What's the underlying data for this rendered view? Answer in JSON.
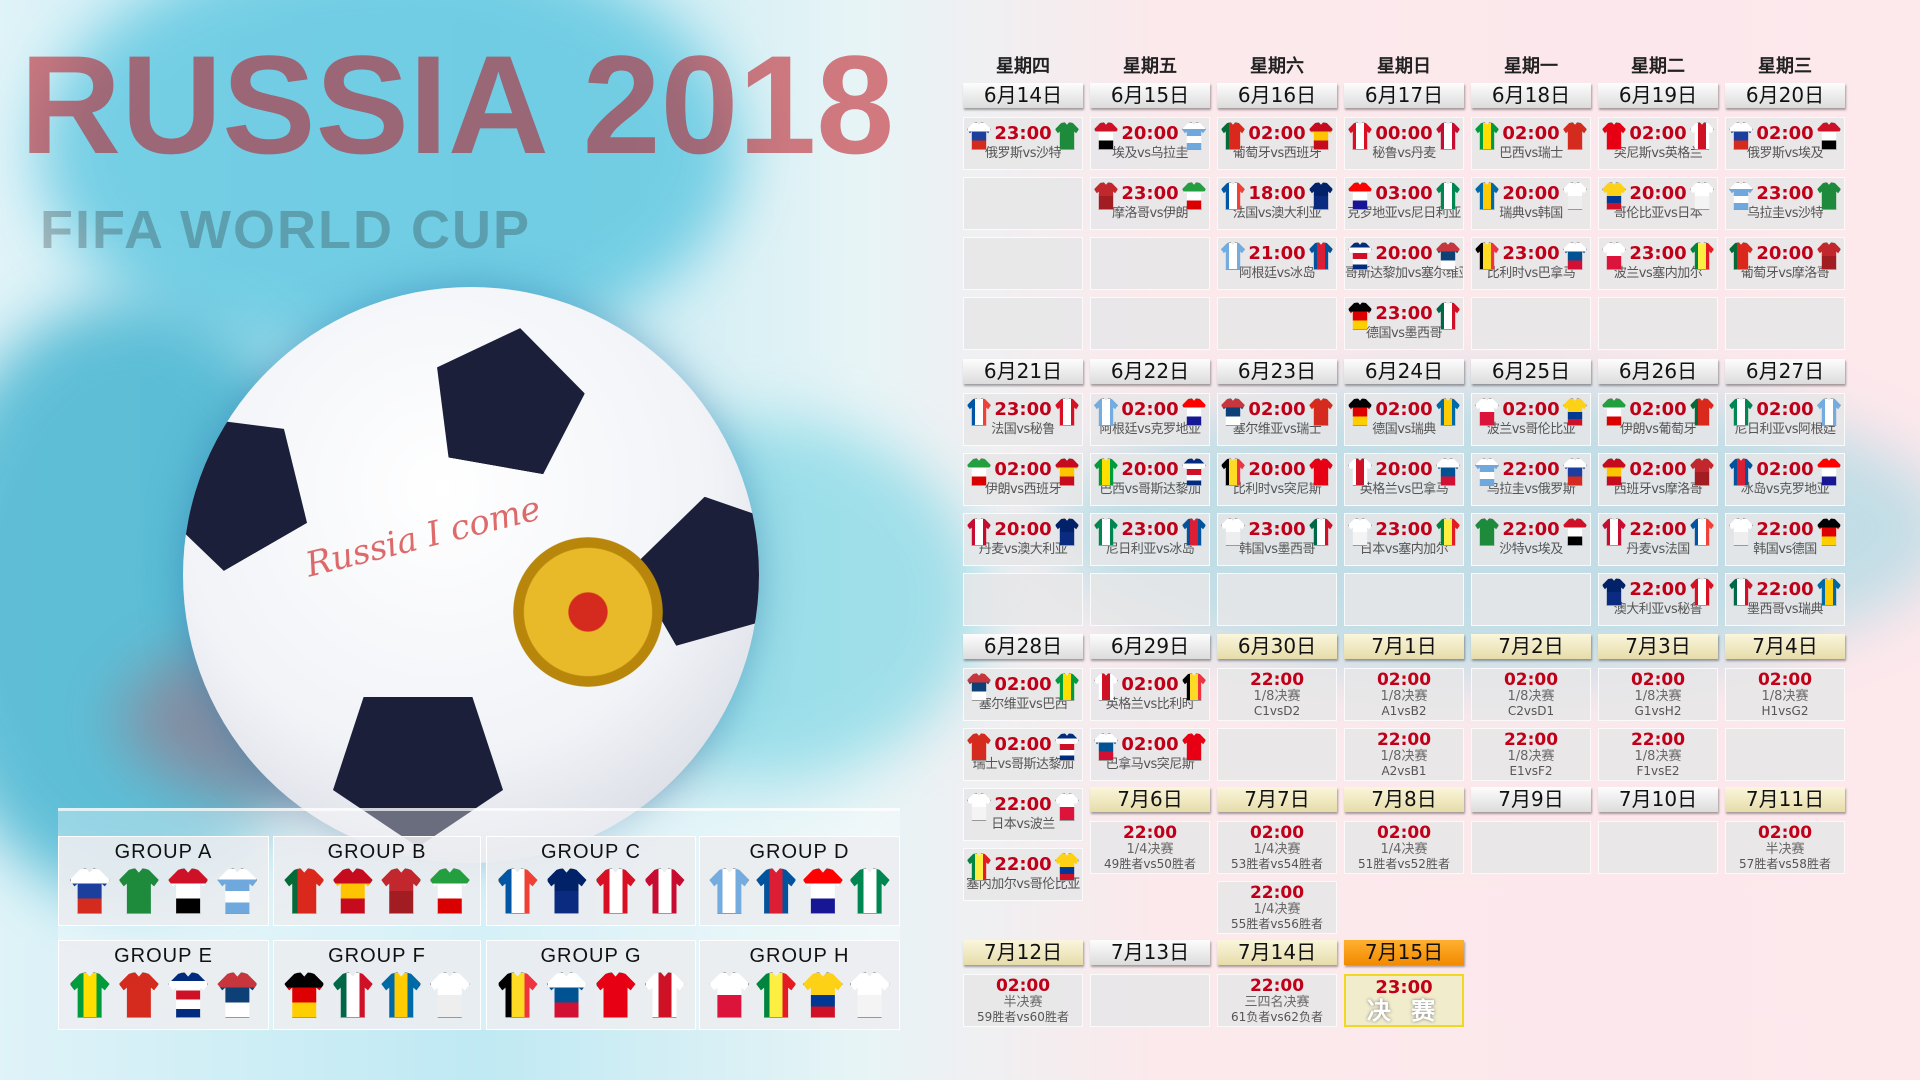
{
  "watermark": {
    "line1": "FIFA WORLD CUP",
    "line2": "RUSSIA 2018",
    "ball_script": "Russia I come"
  },
  "colors": {
    "time": "#c00018",
    "knockout_header": "#e6dcaa",
    "final_header": "#f28a00",
    "final_border": "#f0d820"
  },
  "teams": {
    "俄罗斯": {
      "dir": "h",
      "c": [
        "#ffffff",
        "#1c3f9e",
        "#d52b1e"
      ]
    },
    "沙特": {
      "dir": "h",
      "c": [
        "#1e8a3c",
        "#1e8a3c"
      ]
    },
    "埃及": {
      "dir": "h",
      "c": [
        "#ce1126",
        "#ffffff",
        "#000000"
      ]
    },
    "乌拉圭": {
      "dir": "h",
      "c": [
        "#ffffff",
        "#6fa8dc",
        "#ffffff",
        "#6fa8dc"
      ]
    },
    "葡萄牙": {
      "dir": "v",
      "c": [
        "#046a38",
        "#da291c",
        "#da291c"
      ]
    },
    "西班牙": {
      "dir": "h",
      "c": [
        "#c60b1e",
        "#ffc400",
        "#c60b1e"
      ]
    },
    "摩洛哥": {
      "dir": "h",
      "c": [
        "#c1272d",
        "#a11d22"
      ]
    },
    "伊朗": {
      "dir": "h",
      "c": [
        "#239f40",
        "#ffffff",
        "#da0000"
      ]
    },
    "法国": {
      "dir": "v",
      "c": [
        "#0055a4",
        "#ffffff",
        "#ef4135"
      ]
    },
    "澳大利亚": {
      "dir": "h",
      "c": [
        "#012169",
        "#0a2b80"
      ]
    },
    "秘鲁": {
      "dir": "v",
      "c": [
        "#d91023",
        "#ffffff",
        "#d91023"
      ]
    },
    "丹麦": {
      "dir": "v",
      "c": [
        "#c60c30",
        "#ffffff",
        "#c60c30"
      ]
    },
    "阿根廷": {
      "dir": "v",
      "c": [
        "#74acdf",
        "#ffffff",
        "#74acdf"
      ]
    },
    "冰岛": {
      "dir": "v",
      "c": [
        "#02529c",
        "#dc1e35",
        "#02529c"
      ]
    },
    "克罗地亚": {
      "dir": "h",
      "c": [
        "#ff0000",
        "#ffffff",
        "#171796"
      ]
    },
    "尼日利亚": {
      "dir": "v",
      "c": [
        "#008751",
        "#ffffff",
        "#008751"
      ]
    },
    "巴西": {
      "dir": "v",
      "c": [
        "#009c3b",
        "#ffdf00",
        "#009c3b"
      ]
    },
    "瑞士": {
      "dir": "h",
      "c": [
        "#d52b1e",
        "#d52b1e"
      ]
    },
    "哥斯达黎加": {
      "dir": "h",
      "c": [
        "#002b7f",
        "#ffffff",
        "#ce1126",
        "#ffffff",
        "#002b7f"
      ]
    },
    "塞尔维亚": {
      "dir": "h",
      "c": [
        "#c6363c",
        "#0c4076",
        "#ffffff"
      ]
    },
    "德国": {
      "dir": "h",
      "c": [
        "#000000",
        "#dd0000",
        "#ffce00"
      ]
    },
    "墨西哥": {
      "dir": "v",
      "c": [
        "#006847",
        "#ffffff",
        "#ce1126"
      ]
    },
    "瑞典": {
      "dir": "v",
      "c": [
        "#006aa7",
        "#fecc00",
        "#006aa7"
      ]
    },
    "韩国": {
      "dir": "h",
      "c": [
        "#ffffff",
        "#eeeeee"
      ]
    },
    "比利时": {
      "dir": "v",
      "c": [
        "#000000",
        "#fdda24",
        "#ef3340"
      ]
    },
    "巴拿马": {
      "dir": "h",
      "c": [
        "#ffffff",
        "#005293",
        "#d21034"
      ]
    },
    "突尼斯": {
      "dir": "h",
      "c": [
        "#e70013",
        "#e70013"
      ]
    },
    "英格兰": {
      "dir": "v",
      "c": [
        "#ffffff",
        "#ce1124",
        "#ffffff"
      ]
    },
    "哥伦比亚": {
      "dir": "h",
      "c": [
        "#fcd116",
        "#fcd116",
        "#003893",
        "#ce1126"
      ]
    },
    "日本": {
      "dir": "h",
      "c": [
        "#ffffff",
        "#f4f4f4"
      ]
    },
    "波兰": {
      "dir": "h",
      "c": [
        "#ffffff",
        "#dc143c"
      ]
    },
    "塞内加尔": {
      "dir": "v",
      "c": [
        "#00853f",
        "#fdef42",
        "#e31b23"
      ]
    }
  },
  "schedule": {
    "weekdays": [
      "星期四",
      "星期五",
      "星期六",
      "星期日",
      "星期一",
      "星期二",
      "星期三"
    ],
    "days": [
      {
        "date": "6月14日",
        "style": "group",
        "cells": [
          {
            "time": "23:00",
            "label": "俄罗斯vs沙特",
            "home": "俄罗斯",
            "away": "沙特"
          },
          {},
          {},
          {}
        ]
      },
      {
        "date": "6月15日",
        "style": "group",
        "cells": [
          {
            "time": "20:00",
            "label": "埃及vs乌拉圭",
            "home": "埃及",
            "away": "乌拉圭"
          },
          {
            "time": "23:00",
            "label": "摩洛哥vs伊朗",
            "home": "摩洛哥",
            "away": "伊朗"
          },
          {},
          {}
        ]
      },
      {
        "date": "6月16日",
        "style": "group",
        "cells": [
          {
            "time": "02:00",
            "label": "葡萄牙vs西班牙",
            "home": "葡萄牙",
            "away": "西班牙"
          },
          {
            "time": "18:00",
            "label": "法国vs澳大利亚",
            "home": "法国",
            "away": "澳大利亚"
          },
          {
            "time": "21:00",
            "label": "阿根廷vs冰岛",
            "home": "阿根廷",
            "away": "冰岛"
          },
          {}
        ]
      },
      {
        "date": "6月17日",
        "style": "group",
        "cells": [
          {
            "time": "00:00",
            "label": "秘鲁vs丹麦",
            "home": "秘鲁",
            "away": "丹麦"
          },
          {
            "time": "03:00",
            "label": "克罗地亚vs尼日利亚",
            "home": "克罗地亚",
            "away": "尼日利亚"
          },
          {
            "time": "20:00",
            "label": "哥斯达黎加vs塞尔维亚",
            "home": "哥斯达黎加",
            "away": "塞尔维亚"
          },
          {
            "time": "23:00",
            "label": "德国vs墨西哥",
            "home": "德国",
            "away": "墨西哥"
          }
        ]
      },
      {
        "date": "6月18日",
        "style": "group",
        "cells": [
          {
            "time": "02:00",
            "label": "巴西vs瑞士",
            "home": "巴西",
            "away": "瑞士"
          },
          {
            "time": "20:00",
            "label": "瑞典vs韩国",
            "home": "瑞典",
            "away": "韩国"
          },
          {
            "time": "23:00",
            "label": "比利时vs巴拿马",
            "home": "比利时",
            "away": "巴拿马"
          },
          {}
        ]
      },
      {
        "date": "6月19日",
        "style": "group",
        "cells": [
          {
            "time": "02:00",
            "label": "突尼斯vs英格兰",
            "home": "突尼斯",
            "away": "英格兰"
          },
          {
            "time": "20:00",
            "label": "哥伦比亚vs日本",
            "home": "哥伦比亚",
            "away": "日本"
          },
          {
            "time": "23:00",
            "label": "波兰vs塞内加尔",
            "home": "波兰",
            "away": "塞内加尔"
          },
          {}
        ]
      },
      {
        "date": "6月20日",
        "style": "group",
        "cells": [
          {
            "time": "02:00",
            "label": "俄罗斯vs埃及",
            "home": "俄罗斯",
            "away": "埃及"
          },
          {
            "time": "23:00",
            "label": "乌拉圭vs沙特",
            "home": "乌拉圭",
            "away": "沙特"
          },
          {
            "time": "20:00",
            "label": "葡萄牙vs摩洛哥",
            "home": "葡萄牙",
            "away": "摩洛哥"
          },
          {}
        ]
      },
      {
        "date": "6月21日",
        "style": "group",
        "cells": [
          {
            "time": "23:00",
            "label": "法国vs秘鲁",
            "home": "法国",
            "away": "秘鲁"
          },
          {
            "time": "02:00",
            "label": "伊朗vs西班牙",
            "home": "伊朗",
            "away": "西班牙"
          },
          {
            "time": "20:00",
            "label": "丹麦vs澳大利亚",
            "home": "丹麦",
            "away": "澳大利亚"
          },
          {}
        ]
      },
      {
        "date": "6月22日",
        "style": "group",
        "cells": [
          {
            "time": "02:00",
            "label": "阿根廷vs克罗地亚",
            "home": "阿根廷",
            "away": "克罗地亚"
          },
          {
            "time": "20:00",
            "label": "巴西vs哥斯达黎加",
            "home": "巴西",
            "away": "哥斯达黎加"
          },
          {
            "time": "23:00",
            "label": "尼日利亚vs冰岛",
            "home": "尼日利亚",
            "away": "冰岛"
          },
          {}
        ]
      },
      {
        "date": "6月23日",
        "style": "group",
        "cells": [
          {
            "time": "02:00",
            "label": "塞尔维亚vs瑞士",
            "home": "塞尔维亚",
            "away": "瑞士"
          },
          {
            "time": "20:00",
            "label": "比利时vs突尼斯",
            "home": "比利时",
            "away": "突尼斯"
          },
          {
            "time": "23:00",
            "label": "韩国vs墨西哥",
            "home": "韩国",
            "away": "墨西哥"
          },
          {}
        ]
      },
      {
        "date": "6月24日",
        "style": "group",
        "cells": [
          {
            "time": "02:00",
            "label": "德国vs瑞典",
            "home": "德国",
            "away": "瑞典"
          },
          {
            "time": "20:00",
            "label": "英格兰vs巴拿马",
            "home": "英格兰",
            "away": "巴拿马"
          },
          {
            "time": "23:00",
            "label": "日本vs塞内加尔",
            "home": "日本",
            "away": "塞内加尔"
          },
          {}
        ]
      },
      {
        "date": "6月25日",
        "style": "group",
        "cells": [
          {
            "time": "02:00",
            "label": "波兰vs哥伦比亚",
            "home": "波兰",
            "away": "哥伦比亚"
          },
          {
            "time": "22:00",
            "label": "乌拉圭vs俄罗斯",
            "home": "乌拉圭",
            "away": "俄罗斯"
          },
          {
            "time": "22:00",
            "label": "沙特vs埃及",
            "home": "沙特",
            "away": "埃及"
          },
          {}
        ]
      },
      {
        "date": "6月26日",
        "style": "group",
        "cells": [
          {
            "time": "02:00",
            "label": "伊朗vs葡萄牙",
            "home": "伊朗",
            "away": "葡萄牙"
          },
          {
            "time": "02:00",
            "label": "西班牙vs摩洛哥",
            "home": "西班牙",
            "away": "摩洛哥"
          },
          {
            "time": "22:00",
            "label": "丹麦vs法国",
            "home": "丹麦",
            "away": "法国"
          },
          {
            "time": "22:00",
            "label": "澳大利亚vs秘鲁",
            "home": "澳大利亚",
            "away": "秘鲁"
          }
        ]
      },
      {
        "date": "6月27日",
        "style": "group",
        "cells": [
          {
            "time": "02:00",
            "label": "尼日利亚vs阿根廷",
            "home": "尼日利亚",
            "away": "阿根廷"
          },
          {
            "time": "02:00",
            "label": "冰岛vs克罗地亚",
            "home": "冰岛",
            "away": "克罗地亚"
          },
          {
            "time": "22:00",
            "label": "韩国vs德国",
            "home": "韩国",
            "away": "德国"
          },
          {
            "time": "22:00",
            "label": "墨西哥vs瑞典",
            "home": "墨西哥",
            "away": "瑞典"
          }
        ]
      },
      {
        "date": "6月28日",
        "style": "group",
        "cells": [
          {
            "time": "02:00",
            "label": "塞尔维亚vs巴西",
            "home": "塞尔维亚",
            "away": "巴西"
          },
          {
            "time": "02:00",
            "label": "瑞士vs哥斯达黎加",
            "home": "瑞士",
            "away": "哥斯达黎加"
          },
          {
            "time": "22:00",
            "label": "日本vs波兰",
            "home": "日本",
            "away": "波兰"
          },
          {
            "time": "22:00",
            "label": "塞内加尔vs哥伦比亚",
            "home": "塞内加尔",
            "away": "哥伦比亚"
          }
        ]
      },
      {
        "date": "6月29日",
        "style": "group",
        "cells": [
          {
            "time": "02:00",
            "label": "英格兰vs比利时",
            "home": "英格兰",
            "away": "比利时"
          },
          {
            "time": "02:00",
            "label": "巴拿马vs突尼斯",
            "home": "巴拿马",
            "away": "突尼斯"
          }
        ]
      },
      {
        "date": "6月30日",
        "style": "knockout",
        "cells": [
          {
            "time": "22:00",
            "stage": "1/8决赛",
            "teams": "C1vsD2"
          },
          {}
        ]
      },
      {
        "date": "7月1日",
        "style": "knockout",
        "cells": [
          {
            "time": "02:00",
            "stage": "1/8决赛",
            "teams": "A1vsB2"
          },
          {
            "time": "22:00",
            "stage": "1/8决赛",
            "teams": "A2vsB1"
          }
        ]
      },
      {
        "date": "7月2日",
        "style": "knockout",
        "cells": [
          {
            "time": "02:00",
            "stage": "1/8决赛",
            "teams": "C2vsD1"
          },
          {
            "time": "22:00",
            "stage": "1/8决赛",
            "teams": "E1vsF2"
          }
        ]
      },
      {
        "date": "7月3日",
        "style": "knockout",
        "cells": [
          {
            "time": "02:00",
            "stage": "1/8决赛",
            "teams": "G1vsH2"
          },
          {
            "time": "22:00",
            "stage": "1/8决赛",
            "teams": "F1vsE2"
          }
        ]
      },
      {
        "date": "7月4日",
        "style": "knockout",
        "cells": [
          {
            "time": "02:00",
            "stage": "1/8决赛",
            "teams": "H1vsG2"
          },
          {}
        ]
      },
      {
        "date": "7月6日",
        "style": "knockout",
        "cells": [
          {
            "time": "22:00",
            "stage": "1/4决赛",
            "teams": "49胜者vs50胜者"
          }
        ]
      },
      {
        "date": "7月7日",
        "style": "knockout",
        "cells": [
          {
            "time": "02:00",
            "stage": "1/4决赛",
            "teams": "53胜者vs54胜者"
          },
          {
            "time": "22:00",
            "stage": "1/4决赛",
            "teams": "55胜者vs56胜者"
          }
        ]
      },
      {
        "date": "7月8日",
        "style": "knockout",
        "cells": [
          {
            "time": "02:00",
            "stage": "1/4决赛",
            "teams": "51胜者vs52胜者"
          }
        ]
      },
      {
        "date": "7月9日",
        "style": "group",
        "cells": [
          {}
        ]
      },
      {
        "date": "7月10日",
        "style": "group",
        "cells": [
          {}
        ]
      },
      {
        "date": "7月11日",
        "style": "knockout",
        "cells": [
          {
            "time": "02:00",
            "stage": "半决赛",
            "teams": "57胜者vs58胜者"
          }
        ]
      },
      {
        "date": "7月12日",
        "style": "knockout",
        "cells": [
          {
            "time": "02:00",
            "stage": "半决赛",
            "teams": "59胜者vs60胜者"
          }
        ]
      },
      {
        "date": "7月13日",
        "style": "group",
        "cells": [
          {}
        ]
      },
      {
        "date": "7月14日",
        "style": "knockout",
        "cells": [
          {
            "time": "22:00",
            "stage": "三四名决赛",
            "teams": "61负者vs62负者"
          }
        ]
      },
      {
        "date": "7月15日",
        "style": "final",
        "cells": [
          {
            "time": "23:00",
            "final": "决 赛"
          }
        ]
      }
    ]
  },
  "groups": [
    {
      "name": "GROUP A",
      "teams": [
        "俄罗斯",
        "沙特",
        "埃及",
        "乌拉圭"
      ]
    },
    {
      "name": "GROUP B",
      "teams": [
        "葡萄牙",
        "西班牙",
        "摩洛哥",
        "伊朗"
      ]
    },
    {
      "name": "GROUP C",
      "teams": [
        "法国",
        "澳大利亚",
        "秘鲁",
        "丹麦"
      ]
    },
    {
      "name": "GROUP D",
      "teams": [
        "阿根廷",
        "冰岛",
        "克罗地亚",
        "尼日利亚"
      ]
    },
    {
      "name": "GROUP E",
      "teams": [
        "巴西",
        "瑞士",
        "哥斯达黎加",
        "塞尔维亚"
      ]
    },
    {
      "name": "GROUP F",
      "teams": [
        "德国",
        "墨西哥",
        "瑞典",
        "韩国"
      ]
    },
    {
      "name": "GROUP G",
      "teams": [
        "比利时",
        "巴拿马",
        "突尼斯",
        "英格兰"
      ]
    },
    {
      "name": "GROUP H",
      "teams": [
        "波兰",
        "塞内加尔",
        "哥伦比亚",
        "日本"
      ]
    }
  ]
}
